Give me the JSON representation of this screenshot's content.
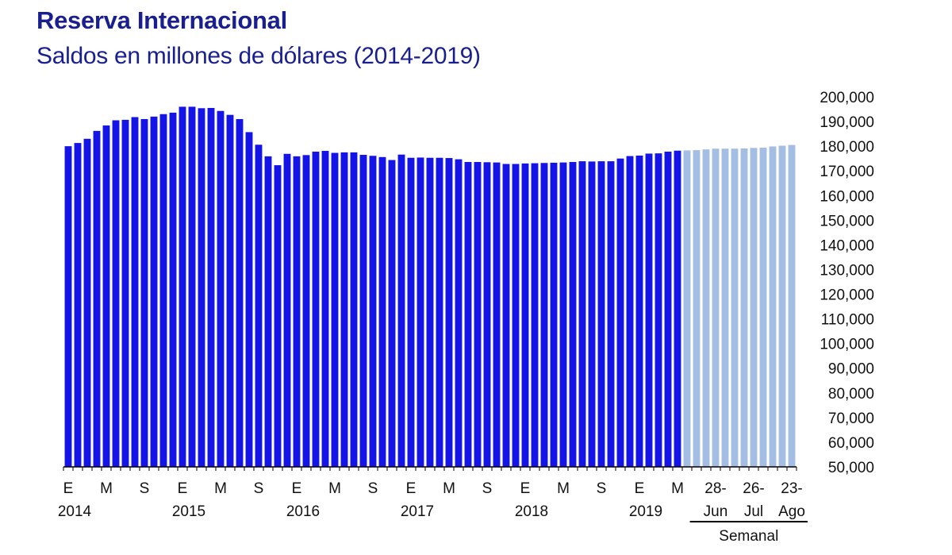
{
  "header": {
    "title": "Reserva Internacional",
    "subtitle": "Saldos en millones de dólares (2014-2019)"
  },
  "colors": {
    "title": "#1a1f8f",
    "monthly_bar": "#1414e6",
    "weekly_bar": "#a3bde3",
    "axis": "#000000"
  },
  "chart_data": {
    "type": "bar",
    "title": "Reserva Internacional",
    "subtitle": "Saldos en millones de dólares (2014-2019)",
    "xlabel": "",
    "ylabel": "",
    "ylim": [
      50000,
      200000
    ],
    "y_ticks": [
      50000,
      60000,
      70000,
      80000,
      90000,
      100000,
      110000,
      120000,
      130000,
      140000,
      150000,
      160000,
      170000,
      180000,
      190000,
      200000
    ],
    "y_tick_labels": [
      "50,000",
      "60,000",
      "70,000",
      "80,000",
      "90,000",
      "100,000",
      "110,000",
      "120,000",
      "130,000",
      "140,000",
      "150,000",
      "160,000",
      "170,000",
      "180,000",
      "190,000",
      "200,000"
    ],
    "y_axis_position": "right",
    "grid": false,
    "legend": "none",
    "series": [
      {
        "kind": "monthly",
        "color": "#1414e6",
        "categories": [
          "2014-01",
          "2014-02",
          "2014-03",
          "2014-04",
          "2014-05",
          "2014-06",
          "2014-07",
          "2014-08",
          "2014-09",
          "2014-10",
          "2014-11",
          "2014-12",
          "2015-01",
          "2015-02",
          "2015-03",
          "2015-04",
          "2015-05",
          "2015-06",
          "2015-07",
          "2015-08",
          "2015-09",
          "2015-10",
          "2015-11",
          "2015-12",
          "2016-01",
          "2016-02",
          "2016-03",
          "2016-04",
          "2016-05",
          "2016-06",
          "2016-07",
          "2016-08",
          "2016-09",
          "2016-10",
          "2016-11",
          "2016-12",
          "2017-01",
          "2017-02",
          "2017-03",
          "2017-04",
          "2017-05",
          "2017-06",
          "2017-07",
          "2017-08",
          "2017-09",
          "2017-10",
          "2017-11",
          "2017-12",
          "2018-01",
          "2018-02",
          "2018-03",
          "2018-04",
          "2018-05",
          "2018-06",
          "2018-07",
          "2018-08",
          "2018-09",
          "2018-10",
          "2018-11",
          "2018-12",
          "2019-01",
          "2019-02",
          "2019-03",
          "2019-04",
          "2019-05"
        ],
        "values": [
          180000,
          181300,
          183000,
          186200,
          188400,
          190500,
          190700,
          191800,
          191000,
          192000,
          193000,
          193600,
          196000,
          196000,
          195400,
          195500,
          194300,
          192700,
          191000,
          185700,
          180600,
          175900,
          172300,
          176900,
          175900,
          176400,
          177800,
          178100,
          177300,
          177500,
          177500,
          176500,
          176100,
          175600,
          174400,
          176600,
          175300,
          175400,
          175300,
          175300,
          175200,
          174700,
          173600,
          173600,
          173500,
          173400,
          172800,
          172800,
          173000,
          173100,
          173200,
          173300,
          173400,
          173600,
          173900,
          173800,
          173900,
          173900,
          175000,
          176000,
          176200,
          177000,
          177100,
          177800,
          178200
        ]
      },
      {
        "kind": "weekly",
        "name": "Semanal",
        "color": "#a3bde3",
        "categories": [
          "w1",
          "w2",
          "w3",
          "w4",
          "w5",
          "w6",
          "w7",
          "w8",
          "w9",
          "w10",
          "w11",
          "w12"
        ],
        "values": [
          178300,
          178400,
          178700,
          179000,
          179000,
          179000,
          179100,
          179300,
          179400,
          179900,
          180200,
          180500
        ]
      }
    ],
    "x_labels": [
      {
        "bar": 0,
        "text": "E",
        "year": "2014"
      },
      {
        "bar": 4,
        "text": "M"
      },
      {
        "bar": 8,
        "text": "S"
      },
      {
        "bar": 12,
        "text": "E",
        "year": "2015"
      },
      {
        "bar": 16,
        "text": "M"
      },
      {
        "bar": 20,
        "text": "S"
      },
      {
        "bar": 24,
        "text": "E",
        "year": "2016"
      },
      {
        "bar": 28,
        "text": "M"
      },
      {
        "bar": 32,
        "text": "S"
      },
      {
        "bar": 36,
        "text": "E",
        "year": "2017"
      },
      {
        "bar": 40,
        "text": "M"
      },
      {
        "bar": 44,
        "text": "S"
      },
      {
        "bar": 48,
        "text": "E",
        "year": "2018"
      },
      {
        "bar": 52,
        "text": "M"
      },
      {
        "bar": 56,
        "text": "S"
      },
      {
        "bar": 60,
        "text": "E",
        "year": "2019"
      },
      {
        "bar": 64,
        "text": "M"
      },
      {
        "bar": 68,
        "text": "28-",
        "line2": "Jun"
      },
      {
        "bar": 72,
        "text": "26-",
        "line2": "Jul"
      },
      {
        "bar": 76,
        "text": "23-",
        "line2": "Ago"
      }
    ],
    "group_label": "Semanal"
  }
}
